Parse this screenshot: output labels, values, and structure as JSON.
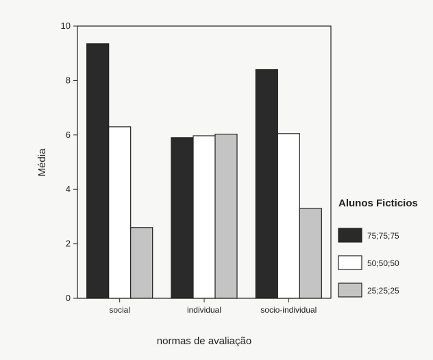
{
  "chart_data": {
    "type": "bar",
    "categories": [
      "social",
      "individual",
      "socio-individual"
    ],
    "series": [
      {
        "name": "75;75;75",
        "values": [
          9.35,
          5.9,
          8.4
        ],
        "color": "#2a2a2a"
      },
      {
        "name": "50;50;50",
        "values": [
          6.3,
          5.97,
          6.05
        ],
        "color": "#ffffff"
      },
      {
        "name": "25;25;25",
        "values": [
          2.6,
          6.03,
          3.3
        ],
        "color": "#c4c4c4"
      }
    ],
    "xlabel": "normas de avaliação",
    "ylabel": "Média",
    "ylim": [
      0,
      10
    ],
    "yticks": [
      0,
      2,
      4,
      6,
      8,
      10
    ],
    "legend": {
      "title": "Alunos Ficticios",
      "position": "right"
    },
    "grid": false
  }
}
